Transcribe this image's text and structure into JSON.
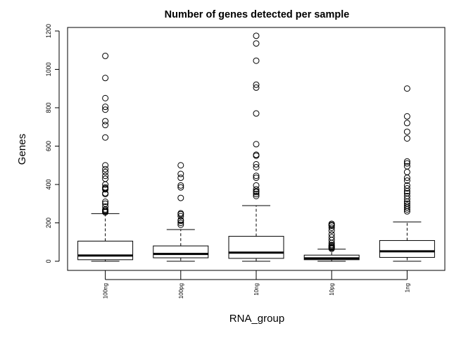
{
  "chart_data": {
    "type": "boxplot",
    "title": "Number of genes detected per sample",
    "xlabel": "RNA_group",
    "ylabel": "Genes",
    "ylim": [
      -45,
      1225
    ],
    "yticks": [
      0,
      200,
      400,
      600,
      800,
      1000,
      1200
    ],
    "ytick_labels": [
      "0",
      "200",
      "400",
      "600",
      "800",
      "1000",
      "1200"
    ],
    "grid": false,
    "legend": "none",
    "categories": [
      "100ng",
      "100pg",
      "10ng",
      "10pg",
      "1ng"
    ],
    "boxes": [
      {
        "category": "100ng",
        "min": 0,
        "q1": 8,
        "median": 30,
        "q3": 105,
        "max": 248,
        "outliers": [
          255,
          260,
          265,
          270,
          285,
          300,
          310,
          350,
          355,
          375,
          380,
          385,
          400,
          430,
          445,
          465,
          480,
          500,
          645,
          710,
          730,
          790,
          805,
          850,
          955,
          1070
        ]
      },
      {
        "category": "100pg",
        "min": 0,
        "q1": 18,
        "median": 38,
        "q3": 80,
        "max": 165,
        "outliers": [
          190,
          200,
          210,
          215,
          235,
          245,
          250,
          330,
          385,
          395,
          435,
          455,
          500
        ]
      },
      {
        "category": "10ng",
        "min": 0,
        "q1": 15,
        "median": 45,
        "q3": 130,
        "max": 290,
        "outliers": [
          340,
          350,
          360,
          365,
          375,
          395,
          435,
          445,
          490,
          505,
          550,
          555,
          610,
          770,
          905,
          920,
          1045,
          1135,
          1175
        ]
      },
      {
        "category": "10pg",
        "min": 0,
        "q1": 8,
        "median": 15,
        "q3": 32,
        "max": 63,
        "outliers": [
          65,
          70,
          72,
          75,
          80,
          85,
          95,
          110,
          125,
          140,
          160,
          175,
          185,
          190,
          195
        ]
      },
      {
        "category": "1ng",
        "min": 0,
        "q1": 20,
        "median": 52,
        "q3": 108,
        "max": 205,
        "outliers": [
          260,
          270,
          280,
          290,
          300,
          310,
          325,
          340,
          355,
          365,
          380,
          395,
          420,
          435,
          465,
          495,
          510,
          520,
          640,
          675,
          720,
          755,
          900
        ]
      }
    ]
  }
}
